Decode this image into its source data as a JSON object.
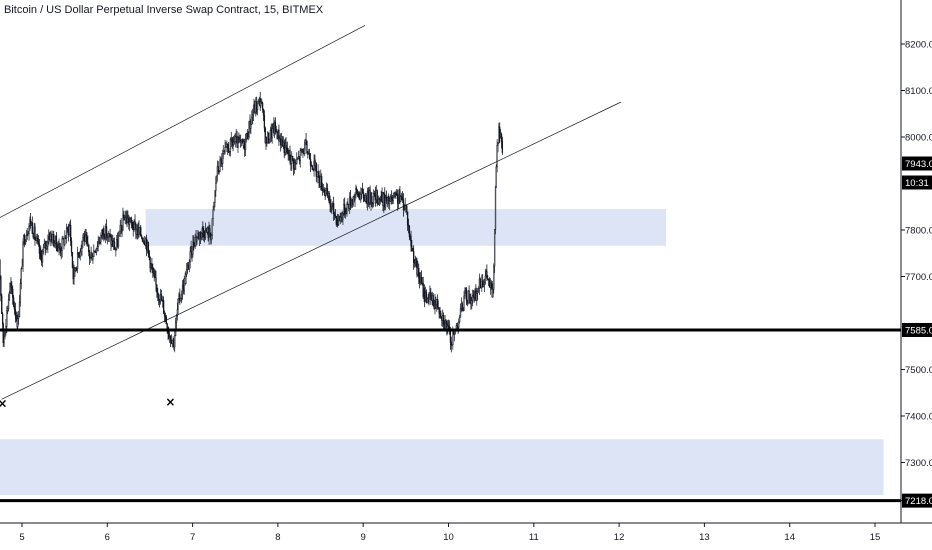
{
  "chart_data": {
    "type": "candlestick",
    "title": "Bitcoin / US Dollar Perpetual Inverse Swap Contract, 15, BITMEX",
    "x_ticks": [
      "5",
      "6",
      "7",
      "8",
      "9",
      "10",
      "11",
      "12",
      "13",
      "14",
      "15"
    ],
    "y_ticks": [
      "8200.0",
      "8100.0",
      "8000.0",
      "7800.0",
      "7700.0",
      "7500.0",
      "7400.0",
      "7300.0",
      "7218.0"
    ],
    "ylim": [
      7180,
      8300
    ],
    "xlim": [
      4.7,
      15.1
    ],
    "price_label": "7943.0",
    "countdown_label": "10:31",
    "horizontal_levels": [
      {
        "value": 7585,
        "label": "7585.0"
      },
      {
        "value": 7218,
        "label": "7218.0"
      }
    ],
    "zones": [
      {
        "x_start": 6.45,
        "x_end": 12.55,
        "y_low": 7766,
        "y_high": 7845
      },
      {
        "x_start": 4.7,
        "x_end": 15.1,
        "y_low": 7230,
        "y_high": 7350
      }
    ],
    "channel_lines": [
      {
        "x": [
          4.67,
          9.02
        ],
        "y": [
          7820,
          8240
        ]
      },
      {
        "x": [
          4.76,
          12.02
        ],
        "y": [
          7436,
          8075
        ]
      }
    ],
    "markers": [
      {
        "x": 4.77,
        "y": 7418,
        "symbol": "×"
      },
      {
        "x": 6.74,
        "y": 7422,
        "symbol": "×"
      }
    ],
    "price_path": [
      [
        4.7,
        7860
      ],
      [
        4.78,
        7560
      ],
      [
        4.86,
        7680
      ],
      [
        4.95,
        7600
      ],
      [
        5.02,
        7780
      ],
      [
        5.1,
        7820
      ],
      [
        5.22,
        7740
      ],
      [
        5.32,
        7790
      ],
      [
        5.45,
        7760
      ],
      [
        5.56,
        7810
      ],
      [
        5.6,
        7700
      ],
      [
        5.72,
        7790
      ],
      [
        5.8,
        7740
      ],
      [
        5.96,
        7800
      ],
      [
        6.1,
        7760
      ],
      [
        6.2,
        7830
      ],
      [
        6.34,
        7800
      ],
      [
        6.45,
        7780
      ],
      [
        6.55,
        7690
      ],
      [
        6.65,
        7640
      ],
      [
        6.72,
        7580
      ],
      [
        6.78,
        7560
      ],
      [
        6.83,
        7640
      ],
      [
        6.92,
        7700
      ],
      [
        7.02,
        7780
      ],
      [
        7.12,
        7800
      ],
      [
        7.22,
        7790
      ],
      [
        7.28,
        7920
      ],
      [
        7.36,
        7960
      ],
      [
        7.48,
        7990
      ],
      [
        7.6,
        7980
      ],
      [
        7.72,
        8060
      ],
      [
        7.8,
        8080
      ],
      [
        7.86,
        7990
      ],
      [
        7.96,
        8020
      ],
      [
        8.1,
        7970
      ],
      [
        8.2,
        7940
      ],
      [
        8.32,
        7980
      ],
      [
        8.44,
        7930
      ],
      [
        8.56,
        7880
      ],
      [
        8.7,
        7820
      ],
      [
        8.8,
        7850
      ],
      [
        8.92,
        7880
      ],
      [
        9.05,
        7870
      ],
      [
        9.18,
        7870
      ],
      [
        9.3,
        7860
      ],
      [
        9.42,
        7870
      ],
      [
        9.5,
        7850
      ],
      [
        9.55,
        7780
      ],
      [
        9.62,
        7720
      ],
      [
        9.72,
        7660
      ],
      [
        9.8,
        7650
      ],
      [
        9.88,
        7640
      ],
      [
        9.96,
        7600
      ],
      [
        10.04,
        7560
      ],
      [
        10.12,
        7610
      ],
      [
        10.2,
        7660
      ],
      [
        10.3,
        7650
      ],
      [
        10.38,
        7690
      ],
      [
        10.45,
        7700
      ],
      [
        10.52,
        7660
      ],
      [
        10.56,
        7940
      ],
      [
        10.59,
        8020
      ],
      [
        10.64,
        7950
      ]
    ]
  }
}
